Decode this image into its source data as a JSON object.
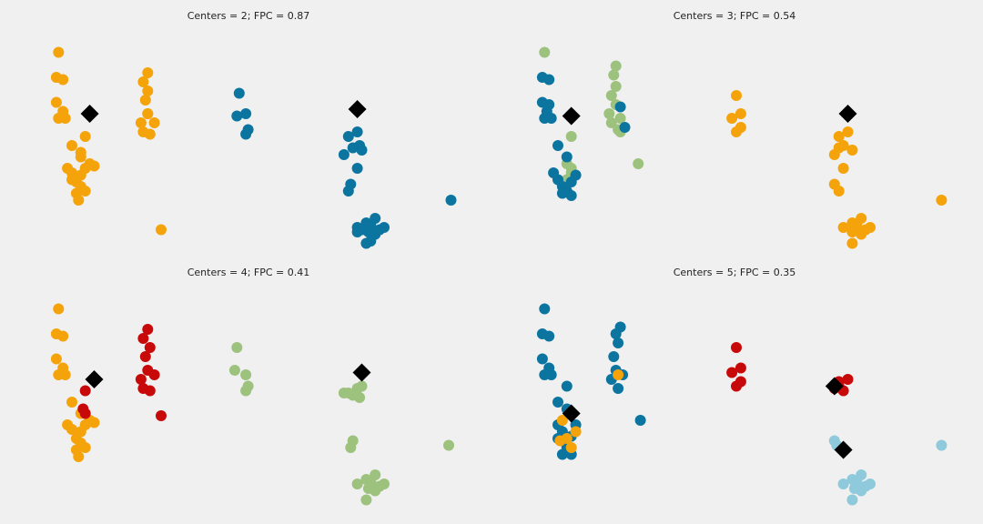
{
  "palette": {
    "background": "#f0f0f0",
    "blue": "#0b75a0",
    "orange": "#f5a30a",
    "green": "#9dc27e",
    "red": "#c8090a",
    "lightblue": "#8ecadc",
    "center": "#000000"
  },
  "chart_data": [
    {
      "type": "scatter",
      "title": "Centers = 2; FPC = 0.87",
      "grid": false,
      "axes_visible": false,
      "xlim": [
        0,
        1
      ],
      "ylim": [
        0,
        1
      ],
      "centers": [
        [
          0.14,
          0.62
        ],
        [
          0.74,
          0.64
        ]
      ],
      "series": [
        {
          "color": "orange",
          "points": [
            [
              0.07,
              0.89
            ],
            [
              0.065,
              0.78
            ],
            [
              0.08,
              0.77
            ],
            [
              0.065,
              0.67
            ],
            [
              0.08,
              0.63
            ],
            [
              0.07,
              0.6
            ],
            [
              0.085,
              0.6
            ],
            [
              0.13,
              0.52
            ],
            [
              0.1,
              0.48
            ],
            [
              0.12,
              0.45
            ],
            [
              0.09,
              0.38
            ],
            [
              0.1,
              0.36
            ],
            [
              0.1,
              0.33
            ],
            [
              0.11,
              0.32
            ],
            [
              0.12,
              0.35
            ],
            [
              0.13,
              0.38
            ],
            [
              0.14,
              0.4
            ],
            [
              0.15,
              0.39
            ],
            [
              0.12,
              0.3
            ],
            [
              0.11,
              0.27
            ],
            [
              0.115,
              0.24
            ],
            [
              0.13,
              0.28
            ],
            [
              0.12,
              0.43
            ],
            [
              0.27,
              0.8
            ],
            [
              0.26,
              0.76
            ],
            [
              0.27,
              0.72
            ],
            [
              0.265,
              0.68
            ],
            [
              0.27,
              0.62
            ],
            [
              0.255,
              0.58
            ],
            [
              0.26,
              0.54
            ],
            [
              0.275,
              0.53
            ],
            [
              0.285,
              0.58
            ],
            [
              0.3,
              0.11
            ],
            [
              0.27,
              0.62
            ]
          ]
        },
        {
          "color": "blue",
          "points": [
            [
              0.475,
              0.71
            ],
            [
              0.47,
              0.61
            ],
            [
              0.49,
              0.62
            ],
            [
              0.495,
              0.55
            ],
            [
              0.49,
              0.53
            ],
            [
              0.72,
              0.52
            ],
            [
              0.74,
              0.54
            ],
            [
              0.745,
              0.48
            ],
            [
              0.75,
              0.46
            ],
            [
              0.73,
              0.47
            ],
            [
              0.71,
              0.44
            ],
            [
              0.74,
              0.38
            ],
            [
              0.725,
              0.31
            ],
            [
              0.72,
              0.28
            ],
            [
              0.95,
              0.24
            ],
            [
              0.78,
              0.16
            ],
            [
              0.77,
              0.13
            ],
            [
              0.765,
              0.1
            ],
            [
              0.74,
              0.12
            ],
            [
              0.76,
              0.14
            ],
            [
              0.75,
              0.11
            ],
            [
              0.78,
              0.09
            ],
            [
              0.76,
              0.05
            ],
            [
              0.77,
              0.06
            ],
            [
              0.79,
              0.11
            ],
            [
              0.8,
              0.12
            ],
            [
              0.74,
              0.1
            ]
          ]
        }
      ]
    },
    {
      "type": "scatter",
      "title": "Centers = 3; FPC = 0.54",
      "grid": false,
      "axes_visible": false,
      "xlim": [
        0,
        1
      ],
      "ylim": [
        0,
        1
      ],
      "centers": [
        [
          0.13,
          0.61
        ],
        [
          0.75,
          0.62
        ]
      ],
      "series": [
        {
          "color": "green",
          "points": [
            [
              0.07,
              0.89
            ],
            [
              0.23,
              0.83
            ],
            [
              0.225,
              0.79
            ],
            [
              0.23,
              0.74
            ],
            [
              0.22,
              0.7
            ],
            [
              0.23,
              0.66
            ],
            [
              0.215,
              0.62
            ],
            [
              0.22,
              0.58
            ],
            [
              0.235,
              0.55
            ],
            [
              0.24,
              0.6
            ],
            [
              0.24,
              0.54
            ],
            [
              0.13,
              0.52
            ],
            [
              0.12,
              0.4
            ],
            [
              0.13,
              0.36
            ],
            [
              0.12,
              0.33
            ],
            [
              0.28,
              0.4
            ],
            [
              0.13,
              0.38
            ]
          ]
        },
        {
          "color": "blue",
          "points": [
            [
              0.065,
              0.78
            ],
            [
              0.08,
              0.77
            ],
            [
              0.065,
              0.67
            ],
            [
              0.075,
              0.63
            ],
            [
              0.07,
              0.6
            ],
            [
              0.085,
              0.6
            ],
            [
              0.08,
              0.66
            ],
            [
              0.1,
              0.48
            ],
            [
              0.12,
              0.43
            ],
            [
              0.09,
              0.36
            ],
            [
              0.1,
              0.33
            ],
            [
              0.11,
              0.3
            ],
            [
              0.12,
              0.28
            ],
            [
              0.13,
              0.32
            ],
            [
              0.14,
              0.35
            ],
            [
              0.11,
              0.27
            ],
            [
              0.13,
              0.26
            ],
            [
              0.24,
              0.65
            ],
            [
              0.25,
              0.56
            ]
          ]
        },
        {
          "color": "orange",
          "points": [
            [
              0.5,
              0.7
            ],
            [
              0.49,
              0.6
            ],
            [
              0.51,
              0.62
            ],
            [
              0.51,
              0.56
            ],
            [
              0.5,
              0.54
            ],
            [
              0.73,
              0.52
            ],
            [
              0.75,
              0.54
            ],
            [
              0.74,
              0.48
            ],
            [
              0.76,
              0.46
            ],
            [
              0.73,
              0.47
            ],
            [
              0.72,
              0.44
            ],
            [
              0.74,
              0.38
            ],
            [
              0.72,
              0.31
            ],
            [
              0.73,
              0.28
            ],
            [
              0.96,
              0.24
            ],
            [
              0.78,
              0.16
            ],
            [
              0.77,
              0.13
            ],
            [
              0.76,
              0.1
            ],
            [
              0.74,
              0.12
            ],
            [
              0.76,
              0.14
            ],
            [
              0.78,
              0.09
            ],
            [
              0.76,
              0.05
            ],
            [
              0.79,
              0.11
            ],
            [
              0.8,
              0.12
            ]
          ]
        }
      ]
    },
    {
      "type": "scatter",
      "title": "Centers = 4; FPC = 0.41",
      "grid": false,
      "axes_visible": false,
      "xlim": [
        0,
        1
      ],
      "ylim": [
        0,
        1
      ],
      "centers": [
        [
          0.15,
          0.58
        ],
        [
          0.75,
          0.61
        ]
      ],
      "series": [
        {
          "color": "orange",
          "points": [
            [
              0.07,
              0.89
            ],
            [
              0.065,
              0.78
            ],
            [
              0.08,
              0.77
            ],
            [
              0.065,
              0.67
            ],
            [
              0.08,
              0.63
            ],
            [
              0.07,
              0.6
            ],
            [
              0.085,
              0.6
            ],
            [
              0.1,
              0.48
            ],
            [
              0.09,
              0.38
            ],
            [
              0.1,
              0.36
            ],
            [
              0.11,
              0.32
            ],
            [
              0.12,
              0.35
            ],
            [
              0.13,
              0.38
            ],
            [
              0.14,
              0.4
            ],
            [
              0.15,
              0.39
            ],
            [
              0.12,
              0.3
            ],
            [
              0.11,
              0.27
            ],
            [
              0.115,
              0.24
            ],
            [
              0.13,
              0.28
            ],
            [
              0.12,
              0.43
            ]
          ]
        },
        {
          "color": "red",
          "points": [
            [
              0.27,
              0.8
            ],
            [
              0.26,
              0.76
            ],
            [
              0.275,
              0.72
            ],
            [
              0.265,
              0.68
            ],
            [
              0.27,
              0.62
            ],
            [
              0.255,
              0.58
            ],
            [
              0.26,
              0.54
            ],
            [
              0.275,
              0.53
            ],
            [
              0.285,
              0.6
            ],
            [
              0.13,
              0.53
            ],
            [
              0.125,
              0.45
            ],
            [
              0.13,
              0.43
            ],
            [
              0.3,
              0.42
            ]
          ]
        },
        {
          "color": "green",
          "points": [
            [
              0.47,
              0.72
            ],
            [
              0.465,
              0.62
            ],
            [
              0.49,
              0.6
            ],
            [
              0.495,
              0.55
            ],
            [
              0.49,
              0.53
            ],
            [
              0.72,
              0.52
            ],
            [
              0.74,
              0.54
            ],
            [
              0.745,
              0.5
            ],
            [
              0.75,
              0.55
            ],
            [
              0.73,
              0.51
            ],
            [
              0.71,
              0.52
            ],
            [
              0.73,
              0.31
            ],
            [
              0.725,
              0.28
            ],
            [
              0.945,
              0.29
            ],
            [
              0.78,
              0.16
            ],
            [
              0.77,
              0.13
            ],
            [
              0.765,
              0.1
            ],
            [
              0.74,
              0.12
            ],
            [
              0.76,
              0.14
            ],
            [
              0.78,
              0.09
            ],
            [
              0.76,
              0.05
            ],
            [
              0.79,
              0.11
            ],
            [
              0.8,
              0.12
            ]
          ]
        }
      ]
    },
    {
      "type": "scatter",
      "title": "Centers = 5; FPC = 0.35",
      "grid": false,
      "axes_visible": false,
      "xlim": [
        0,
        1
      ],
      "ylim": [
        0,
        1
      ],
      "centers": [
        [
          0.13,
          0.43
        ],
        [
          0.72,
          0.55
        ],
        [
          0.74,
          0.27
        ]
      ],
      "series": [
        {
          "color": "blue",
          "points": [
            [
              0.07,
              0.89
            ],
            [
              0.065,
              0.78
            ],
            [
              0.08,
              0.77
            ],
            [
              0.065,
              0.67
            ],
            [
              0.08,
              0.63
            ],
            [
              0.07,
              0.6
            ],
            [
              0.085,
              0.6
            ],
            [
              0.12,
              0.55
            ],
            [
              0.1,
              0.48
            ],
            [
              0.12,
              0.45
            ],
            [
              0.1,
              0.38
            ],
            [
              0.11,
              0.35
            ],
            [
              0.1,
              0.32
            ],
            [
              0.13,
              0.33
            ],
            [
              0.14,
              0.38
            ],
            [
              0.12,
              0.28
            ],
            [
              0.11,
              0.25
            ],
            [
              0.13,
              0.25
            ],
            [
              0.23,
              0.78
            ],
            [
              0.24,
              0.81
            ],
            [
              0.235,
              0.74
            ],
            [
              0.225,
              0.68
            ],
            [
              0.23,
              0.62
            ],
            [
              0.22,
              0.58
            ],
            [
              0.235,
              0.54
            ],
            [
              0.245,
              0.6
            ],
            [
              0.285,
              0.4
            ]
          ]
        },
        {
          "color": "orange",
          "points": [
            [
              0.11,
              0.4
            ],
            [
              0.12,
              0.32
            ],
            [
              0.13,
              0.28
            ],
            [
              0.105,
              0.31
            ],
            [
              0.14,
              0.35
            ],
            [
              0.235,
              0.6
            ]
          ]
        },
        {
          "color": "red",
          "points": [
            [
              0.5,
              0.72
            ],
            [
              0.49,
              0.61
            ],
            [
              0.51,
              0.63
            ],
            [
              0.51,
              0.57
            ],
            [
              0.5,
              0.55
            ],
            [
              0.73,
              0.57
            ],
            [
              0.75,
              0.58
            ],
            [
              0.74,
              0.53
            ],
            [
              0.72,
              0.54
            ],
            [
              0.73,
              0.55
            ]
          ]
        },
        {
          "color": "lightblue",
          "points": [
            [
              0.72,
              0.31
            ],
            [
              0.725,
              0.29
            ],
            [
              0.96,
              0.29
            ],
            [
              0.78,
              0.16
            ],
            [
              0.77,
              0.13
            ],
            [
              0.765,
              0.1
            ],
            [
              0.74,
              0.12
            ],
            [
              0.76,
              0.14
            ],
            [
              0.78,
              0.09
            ],
            [
              0.76,
              0.05
            ],
            [
              0.79,
              0.11
            ],
            [
              0.8,
              0.12
            ]
          ]
        }
      ]
    }
  ]
}
